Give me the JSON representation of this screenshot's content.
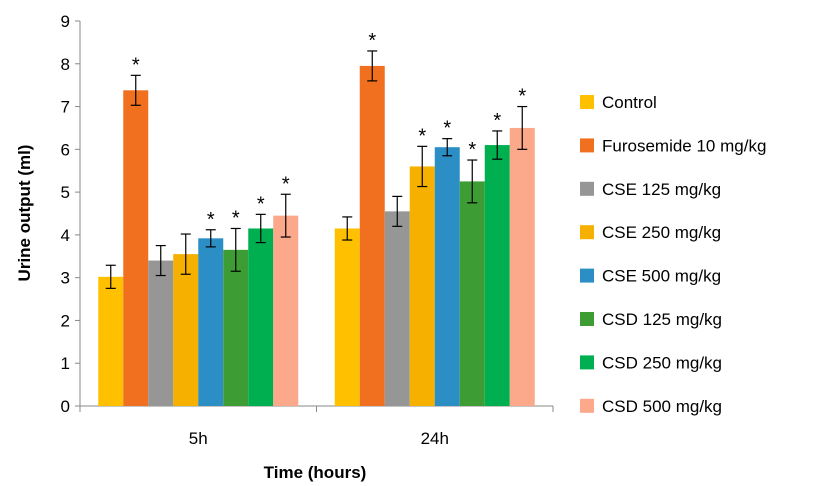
{
  "chart_data": {
    "type": "bar",
    "xlabel": "Time (hours)",
    "ylabel": "Urine output (ml)",
    "ylim": [
      0,
      9
    ],
    "yticks": [
      0,
      1,
      2,
      3,
      4,
      5,
      6,
      7,
      8,
      9
    ],
    "categories": [
      "5h",
      "24h"
    ],
    "legend_position": "right",
    "grid": false,
    "significance_marker": "*",
    "series": [
      {
        "name": "Control",
        "color": "#FFC000",
        "values": [
          3.02,
          4.15
        ],
        "errors": [
          0.27,
          0.27
        ],
        "significant": [
          false,
          false
        ]
      },
      {
        "name": "Furosemide 10 mg/kg",
        "color": "#F07020",
        "values": [
          7.38,
          7.95
        ],
        "errors": [
          0.35,
          0.35
        ],
        "significant": [
          true,
          true
        ]
      },
      {
        "name": "CSE 125 mg/kg",
        "color": "#969696",
        "values": [
          3.4,
          4.55
        ],
        "errors": [
          0.35,
          0.35
        ],
        "significant": [
          false,
          false
        ]
      },
      {
        "name": "CSE 250 mg/kg",
        "color": "#F5B000",
        "values": [
          3.55,
          5.6
        ],
        "errors": [
          0.47,
          0.47
        ],
        "significant": [
          false,
          true
        ]
      },
      {
        "name": "CSE 500 mg/kg",
        "color": "#2B8FC6",
        "values": [
          3.92,
          6.05
        ],
        "errors": [
          0.2,
          0.2
        ],
        "significant": [
          true,
          true
        ]
      },
      {
        "name": "CSD 125 mg/kg",
        "color": "#3E9C35",
        "values": [
          3.65,
          5.25
        ],
        "errors": [
          0.5,
          0.5
        ],
        "significant": [
          true,
          true
        ]
      },
      {
        "name": "CSD 250 mg/kg",
        "color": "#00B050",
        "values": [
          4.15,
          6.1
        ],
        "errors": [
          0.33,
          0.33
        ],
        "significant": [
          true,
          true
        ]
      },
      {
        "name": "CSD 500 mg/kg",
        "color": "#FCA88A",
        "values": [
          4.45,
          6.5
        ],
        "errors": [
          0.5,
          0.5
        ],
        "significant": [
          true,
          true
        ]
      }
    ]
  }
}
